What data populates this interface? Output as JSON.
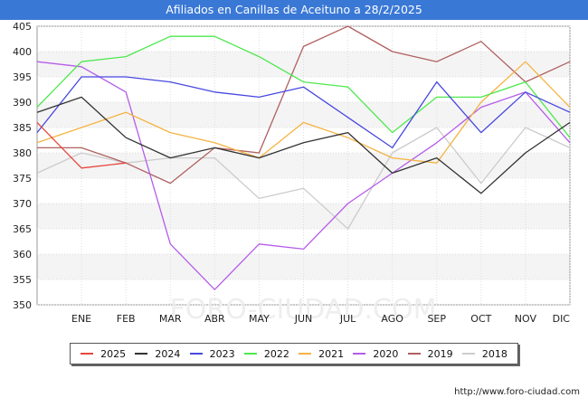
{
  "header": {
    "title": "Afiliados en Canillas de Aceituno a 28/2/2025"
  },
  "footer": {
    "url": "http://www.foro-ciudad.com"
  },
  "watermark": "FORO-CIUDAD.COM",
  "chart_data": {
    "type": "line",
    "title": "Afiliados en Canillas de Aceituno a 28/2/2025",
    "xlabel": "",
    "ylabel": "",
    "categories": [
      "",
      "ENE",
      "FEB",
      "MAR",
      "ABR",
      "MAY",
      "JUN",
      "JUL",
      "AGO",
      "SEP",
      "OCT",
      "NOV",
      "DIC"
    ],
    "ylim": [
      350,
      405
    ],
    "yticks": [
      350,
      355,
      360,
      365,
      370,
      375,
      380,
      385,
      390,
      395,
      400,
      405
    ],
    "grid": true,
    "legend_position": "bottom",
    "series": [
      {
        "name": "2025",
        "color": "#e8463c",
        "values": [
          386,
          377,
          378,
          null,
          null,
          null,
          null,
          null,
          null,
          null,
          null,
          null,
          null
        ]
      },
      {
        "name": "2024",
        "color": "#333333",
        "values": [
          388,
          391,
          383,
          379,
          381,
          379,
          382,
          384,
          376,
          379,
          372,
          380,
          386
        ]
      },
      {
        "name": "2023",
        "color": "#4848e0",
        "values": [
          384,
          395,
          395,
          394,
          392,
          391,
          393,
          387,
          381,
          394,
          384,
          392,
          388
        ]
      },
      {
        "name": "2022",
        "color": "#4de84d",
        "values": [
          389,
          398,
          399,
          403,
          403,
          399,
          394,
          393,
          384,
          391,
          391,
          394,
          383
        ]
      },
      {
        "name": "2021",
        "color": "#f5b342",
        "values": [
          382,
          385,
          388,
          384,
          382,
          379,
          386,
          383,
          379,
          378,
          390,
          398,
          389
        ]
      },
      {
        "name": "2020",
        "color": "#b55ce8",
        "values": [
          398,
          397,
          392,
          362,
          353,
          362,
          361,
          370,
          376,
          382,
          389,
          392,
          382
        ]
      },
      {
        "name": "2019",
        "color": "#b06060",
        "values": [
          381,
          381,
          378,
          374,
          381,
          380,
          401,
          405,
          400,
          398,
          402,
          394,
          398
        ]
      },
      {
        "name": "2018",
        "color": "#cccccc",
        "values": [
          376,
          380,
          378,
          379,
          379,
          371,
          373,
          365,
          380,
          385,
          374,
          385,
          381
        ]
      }
    ]
  }
}
